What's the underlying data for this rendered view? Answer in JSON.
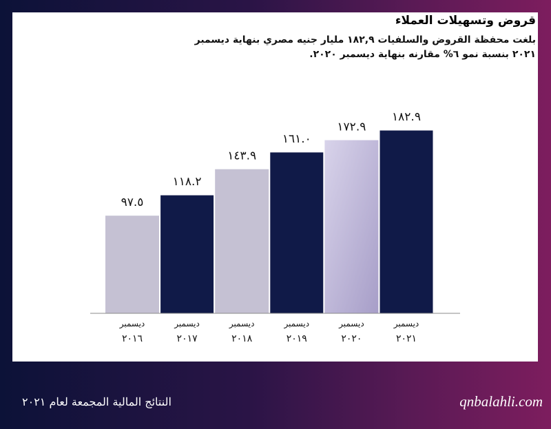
{
  "header": {
    "title": "قروض وتسهيلات العملاء",
    "subtitle": "بلغت محفظة القروض والسلفيات ١٨٢,٩ مليار جنيه مصري بنهاية ديسمبر ٢٠٢١ بنسبة نمو ٦% مقارنه بنهاية ديسمبر ٢٠٢٠."
  },
  "footer": {
    "report_title": "النتائج المالية المجمعة لعام ٢٠٢١",
    "website": "qnbalahli.com"
  },
  "colors": {
    "light_bar": "#c5c1d3",
    "dark_bar": "#101a48",
    "highlight_light": "#bdb6d6",
    "axis": "#8a8a8a"
  },
  "chart_data": {
    "type": "bar",
    "categories": [
      {
        "month": "ديسمبر",
        "year": "٢٠١٦"
      },
      {
        "month": "ديسمبر",
        "year": "٢٠١٧"
      },
      {
        "month": "ديسمبر",
        "year": "٢٠١٨"
      },
      {
        "month": "ديسمبر",
        "year": "٢٠١٩"
      },
      {
        "month": "ديسمبر",
        "year": "٢٠٢٠"
      },
      {
        "month": "ديسمبر",
        "year": "٢٠٢١"
      }
    ],
    "values": [
      97.5,
      118.2,
      143.9,
      161.0,
      172.9,
      182.9
    ],
    "value_labels": [
      "٩٧.٥",
      "١١٨.٢",
      "١٤٣.٩",
      "١٦١.٠",
      "١٧٢.٩",
      "١٨٢.٩"
    ],
    "bar_styles": [
      "light",
      "dark",
      "light",
      "dark",
      "light",
      "dark"
    ],
    "ylim": [
      0,
      200
    ],
    "grid": false,
    "title": "",
    "xlabel": "",
    "ylabel": ""
  }
}
